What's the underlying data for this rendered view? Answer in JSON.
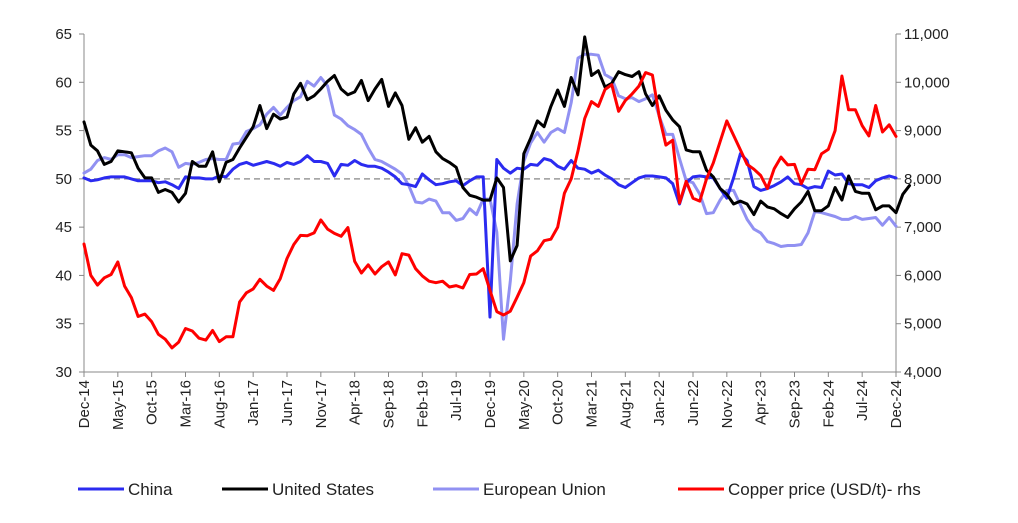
{
  "chart_data": {
    "type": "line",
    "title": "",
    "x_labels": [
      "Dec-14",
      "May-15",
      "Oct-15",
      "Mar-16",
      "Aug-16",
      "Jan-17",
      "Jun-17",
      "Nov-17",
      "Apr-18",
      "Sep-18",
      "Feb-19",
      "Jul-19",
      "Dec-19",
      "May-20",
      "Oct-20",
      "Mar-21",
      "Aug-21",
      "Jan-22",
      "Jun-22",
      "Nov-22",
      "Apr-23",
      "Sep-23",
      "Feb-24",
      "Jul-24",
      "Dec-24"
    ],
    "x_label_step_months": 5,
    "y_left": {
      "ticks": [
        30,
        35,
        40,
        45,
        50,
        55,
        60,
        65
      ],
      "ylim": [
        30,
        65
      ]
    },
    "y_right": {
      "ticks": [
        "4,000",
        "5,000",
        "6,000",
        "7,000",
        "8,000",
        "9,000",
        "10,000",
        "11,000"
      ],
      "ylim": [
        4000,
        11000
      ]
    },
    "reference_line": {
      "value": 50,
      "axis": "left",
      "color": "#999999",
      "style": "dashed"
    },
    "legend_position": "bottom",
    "series": [
      {
        "name": "China",
        "axis": "left",
        "color": "#2b2bf0",
        "values": [
          50.1,
          49.8,
          49.9,
          50.1,
          50.2,
          50.2,
          50.2,
          50.0,
          49.8,
          49.8,
          49.8,
          49.6,
          49.7,
          49.4,
          49.0,
          50.2,
          50.1,
          50.1,
          50.0,
          50.0,
          50.3,
          50.2,
          51.0,
          51.5,
          51.7,
          51.4,
          51.6,
          51.8,
          51.6,
          51.3,
          51.7,
          51.5,
          51.8,
          52.4,
          51.8,
          51.8,
          51.6,
          50.3,
          51.5,
          51.4,
          51.9,
          51.5,
          51.3,
          51.3,
          51.1,
          50.7,
          50.2,
          49.5,
          49.4,
          49.2,
          50.5,
          49.9,
          49.4,
          49.5,
          49.7,
          49.8,
          49.3,
          49.8,
          50.2,
          50.2,
          35.7,
          52.0,
          51.1,
          50.6,
          51.1,
          51.0,
          51.5,
          51.4,
          52.1,
          51.9,
          51.3,
          51.0,
          51.9,
          51.1,
          51.0,
          50.6,
          50.9,
          50.4,
          50.0,
          49.4,
          49.1,
          49.6,
          50.1,
          50.3,
          50.3,
          50.2,
          50.1,
          49.5,
          47.4,
          49.6,
          50.2,
          50.3,
          50.2,
          50.1,
          49.0,
          48.0,
          50.1,
          52.6,
          51.9,
          49.2,
          48.8,
          49.0,
          49.3,
          49.7,
          50.2,
          49.5,
          49.4,
          49.0,
          49.2,
          49.1,
          50.8,
          50.4,
          50.5,
          49.5,
          49.4,
          49.4,
          49.1,
          49.8,
          50.1,
          50.3,
          50.1
        ]
      },
      {
        "name": "United States",
        "axis": "left",
        "color": "#000000",
        "values": [
          55.9,
          53.5,
          52.9,
          51.5,
          51.8,
          52.9,
          52.8,
          52.7,
          51.1,
          50.1,
          50.1,
          48.6,
          48.9,
          48.6,
          47.6,
          48.5,
          51.8,
          51.3,
          51.3,
          52.8,
          49.7,
          51.7,
          52.0,
          53.2,
          54.3,
          55.4,
          57.6,
          55.2,
          56.7,
          56.2,
          56.4,
          58.8,
          59.9,
          58.2,
          58.6,
          59.3,
          60.1,
          60.7,
          59.3,
          58.7,
          59.0,
          60.2,
          58.1,
          59.3,
          60.3,
          57.5,
          58.9,
          57.6,
          54.1,
          55.3,
          53.8,
          54.4,
          52.8,
          52.1,
          51.7,
          51.2,
          49.1,
          48.3,
          48.1,
          47.8,
          47.8,
          50.1,
          49.1,
          41.5,
          43.1,
          52.6,
          54.2,
          56.0,
          55.4,
          57.5,
          59.2,
          57.5,
          60.5,
          58.7,
          64.7,
          60.7,
          61.2,
          59.5,
          59.9,
          61.1,
          60.8,
          60.6,
          61.1,
          58.8,
          57.6,
          58.6,
          57.1,
          56.1,
          55.4,
          53.0,
          52.8,
          52.8,
          50.9,
          50.2,
          49.0,
          48.4,
          47.4,
          47.7,
          47.4,
          46.3,
          47.7,
          47.1,
          46.9,
          46.4,
          46.0,
          46.9,
          47.6,
          48.7,
          46.7,
          46.7,
          47.2,
          49.1,
          47.8,
          50.3,
          48.7,
          48.5,
          48.5,
          46.8,
          47.2,
          47.2,
          46.5,
          48.4,
          49.3
        ]
      },
      {
        "name": "European Union",
        "axis": "left",
        "color": "#9191f2",
        "values": [
          50.6,
          51.0,
          51.9,
          52.2,
          52.0,
          52.5,
          52.5,
          52.2,
          52.3,
          52.4,
          52.4,
          52.9,
          53.2,
          52.8,
          51.2,
          51.6,
          51.5,
          51.7,
          52.0,
          52.1,
          52.0,
          52.0,
          53.6,
          53.7,
          54.9,
          55.2,
          55.6,
          56.7,
          57.4,
          56.6,
          57.4,
          58.1,
          58.5,
          60.1,
          59.6,
          60.5,
          59.6,
          56.6,
          56.2,
          55.5,
          55.1,
          54.6,
          53.2,
          52.0,
          51.8,
          51.4,
          51.0,
          50.5,
          49.3,
          47.6,
          47.5,
          47.9,
          47.7,
          46.5,
          46.5,
          45.7,
          45.9,
          46.9,
          46.3,
          47.9,
          47.9,
          44.5,
          33.4,
          39.4,
          47.4,
          51.8,
          53.7,
          54.8,
          53.8,
          54.8,
          55.2,
          54.8,
          57.9,
          62.5,
          62.9,
          62.9,
          62.8,
          60.8,
          60.4,
          58.6,
          58.3,
          58.4,
          58.0,
          58.3,
          58.7,
          56.5,
          54.6,
          54.6,
          52.1,
          49.8,
          49.6,
          48.4,
          46.4,
          46.5,
          47.8,
          48.8,
          48.8,
          47.3,
          45.8,
          44.8,
          44.4,
          43.5,
          43.3,
          43.0,
          43.1,
          43.1,
          43.2,
          44.4,
          46.6,
          46.5,
          46.3,
          46.1,
          45.8,
          45.8,
          46.1,
          45.8,
          45.9,
          46.0,
          45.2,
          46.0,
          45.1
        ]
      },
      {
        "name": "Copper price (USD/t)- rhs",
        "axis": "right",
        "color": "#ff0000",
        "values": [
          6650,
          6000,
          5800,
          5950,
          6020,
          6280,
          5780,
          5540,
          5150,
          5200,
          5040,
          4780,
          4680,
          4500,
          4620,
          4900,
          4850,
          4700,
          4660,
          4860,
          4630,
          4730,
          4730,
          5450,
          5640,
          5720,
          5920,
          5780,
          5690,
          5930,
          6350,
          6640,
          6830,
          6820,
          6880,
          7150,
          6960,
          6870,
          6810,
          6990,
          6290,
          6050,
          6220,
          6030,
          6180,
          6280,
          6010,
          6450,
          6420,
          6140,
          5990,
          5880,
          5850,
          5880,
          5760,
          5790,
          5740,
          6020,
          6030,
          6140,
          5690,
          5250,
          5180,
          5260,
          5550,
          5850,
          6400,
          6510,
          6720,
          6750,
          7000,
          7700,
          8000,
          8580,
          9250,
          9600,
          9500,
          9850,
          9950,
          9400,
          9620,
          9760,
          9920,
          10200,
          10150,
          9300,
          8700,
          8800,
          7500,
          7950,
          7600,
          7540,
          8000,
          8330,
          8770,
          9200,
          8900,
          8600,
          8300,
          8200,
          8070,
          7800,
          8210,
          8450,
          8290,
          8300,
          7900,
          8200,
          8190,
          8520,
          8610,
          9000,
          10130,
          9430,
          9430,
          9100,
          8890,
          9520,
          8970,
          9120,
          8880
        ]
      }
    ]
  }
}
